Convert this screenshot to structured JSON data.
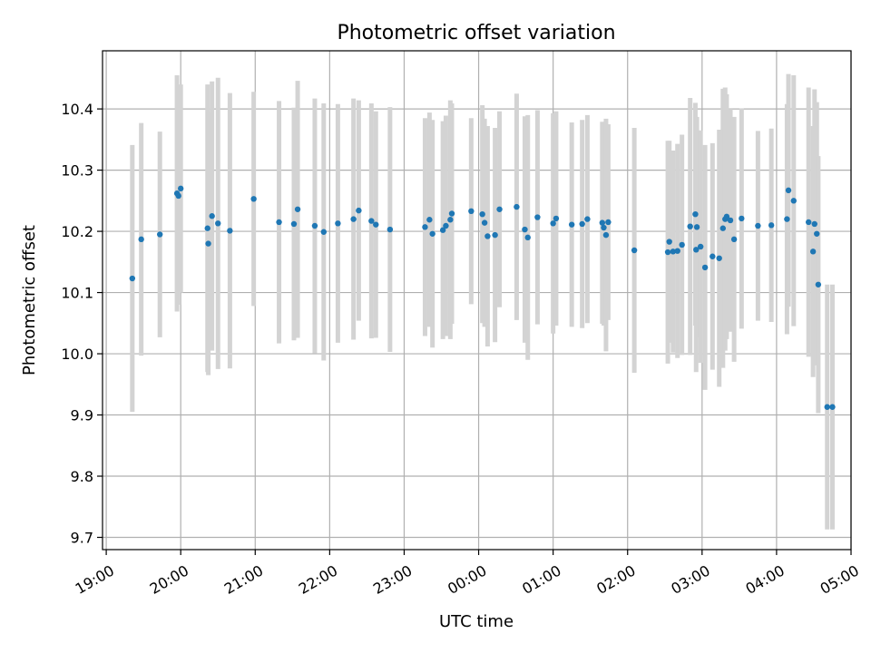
{
  "chart_data": {
    "type": "scatter",
    "title": "Photometric offset variation",
    "xlabel": "UTC time",
    "ylabel": "Photometric offset",
    "x_unit": "hours since 19:00 UTC",
    "xlim": [
      -0.05,
      10.0
    ],
    "ylim": [
      9.68,
      10.495
    ],
    "grid": true,
    "x_ticks": [
      {
        "value": 0,
        "label": "19:00"
      },
      {
        "value": 1,
        "label": "20:00"
      },
      {
        "value": 2,
        "label": "21:00"
      },
      {
        "value": 3,
        "label": "22:00"
      },
      {
        "value": 4,
        "label": "23:00"
      },
      {
        "value": 5,
        "label": "00:00"
      },
      {
        "value": 6,
        "label": "01:00"
      },
      {
        "value": 7,
        "label": "02:00"
      },
      {
        "value": 8,
        "label": "03:00"
      },
      {
        "value": 9,
        "label": "04:00"
      },
      {
        "value": 10,
        "label": "05:00"
      }
    ],
    "y_ticks": [
      {
        "value": 9.7,
        "label": "9.7"
      },
      {
        "value": 9.8,
        "label": "9.8"
      },
      {
        "value": 9.9,
        "label": "9.9"
      },
      {
        "value": 10.0,
        "label": "10.0"
      },
      {
        "value": 10.1,
        "label": "10.1"
      },
      {
        "value": 10.2,
        "label": "10.2"
      },
      {
        "value": 10.3,
        "label": "10.3"
      },
      {
        "value": 10.4,
        "label": "10.4"
      }
    ],
    "series": [
      {
        "name": "Photometric offset",
        "point_color": "#1f77b4",
        "errorbar_color": "#d3d3d3",
        "x": [
          0.35,
          0.47,
          0.72,
          0.95,
          0.97,
          1.0,
          1.36,
          1.37,
          1.42,
          1.5,
          1.66,
          1.98,
          2.32,
          2.52,
          2.57,
          2.8,
          2.92,
          3.11,
          3.32,
          3.39,
          3.56,
          3.62,
          3.81,
          4.28,
          4.34,
          4.38,
          4.52,
          4.56,
          4.62,
          4.64,
          4.9,
          5.05,
          5.08,
          5.12,
          5.22,
          5.28,
          5.51,
          5.62,
          5.66,
          5.79,
          6.0,
          6.04,
          6.25,
          6.39,
          6.46,
          6.66,
          6.68,
          6.71,
          6.74,
          7.09,
          7.54,
          7.56,
          7.61,
          7.67,
          7.73,
          7.84,
          7.91,
          7.92,
          7.93,
          7.98,
          8.04,
          8.14,
          8.23,
          8.28,
          8.31,
          8.33,
          8.38,
          8.43,
          8.53,
          8.75,
          8.93,
          9.14,
          9.16,
          9.23,
          9.43,
          9.49,
          9.51,
          9.54,
          9.56,
          9.68,
          9.75
        ],
        "y": [
          10.123,
          10.187,
          10.195,
          10.262,
          10.258,
          10.27,
          10.205,
          10.18,
          10.225,
          10.213,
          10.201,
          10.253,
          10.215,
          10.212,
          10.236,
          10.209,
          10.199,
          10.213,
          10.22,
          10.234,
          10.217,
          10.211,
          10.203,
          10.207,
          10.219,
          10.196,
          10.202,
          10.209,
          10.219,
          10.229,
          10.233,
          10.228,
          10.214,
          10.192,
          10.194,
          10.236,
          10.24,
          10.203,
          10.19,
          10.223,
          10.213,
          10.221,
          10.211,
          10.212,
          10.22,
          10.214,
          10.206,
          10.194,
          10.215,
          10.169,
          10.166,
          10.183,
          10.167,
          10.168,
          10.178,
          10.208,
          10.228,
          10.17,
          10.207,
          10.175,
          10.141,
          10.159,
          10.156,
          10.205,
          10.22,
          10.224,
          10.218,
          10.187,
          10.221,
          10.209,
          10.21,
          10.22,
          10.267,
          10.25,
          10.215,
          10.167,
          10.212,
          10.196,
          10.113,
          9.913,
          9.913
        ],
        "yerr": [
          0.218,
          0.19,
          0.168,
          0.193,
          0.178,
          0.17,
          0.235,
          0.215,
          0.22,
          0.238,
          0.225,
          0.175,
          0.198,
          0.19,
          0.21,
          0.208,
          0.21,
          0.195,
          0.197,
          0.18,
          0.192,
          0.185,
          0.2,
          0.178,
          0.175,
          0.186,
          0.178,
          0.18,
          0.195,
          0.18,
          0.152,
          0.178,
          0.17,
          0.18,
          0.175,
          0.16,
          0.185,
          0.185,
          0.2,
          0.175,
          0.18,
          0.175,
          0.167,
          0.17,
          0.17,
          0.165,
          0.16,
          0.19,
          0.16,
          0.2,
          0.182,
          0.165,
          0.165,
          0.175,
          0.18,
          0.21,
          0.182,
          0.2,
          0.18,
          0.19,
          0.2,
          0.185,
          0.21,
          0.228,
          0.215,
          0.2,
          0.182,
          0.2,
          0.18,
          0.155,
          0.158,
          0.188,
          0.19,
          0.205,
          0.22,
          0.205,
          0.22,
          0.215,
          0.21,
          0.2,
          0.2
        ]
      }
    ]
  }
}
